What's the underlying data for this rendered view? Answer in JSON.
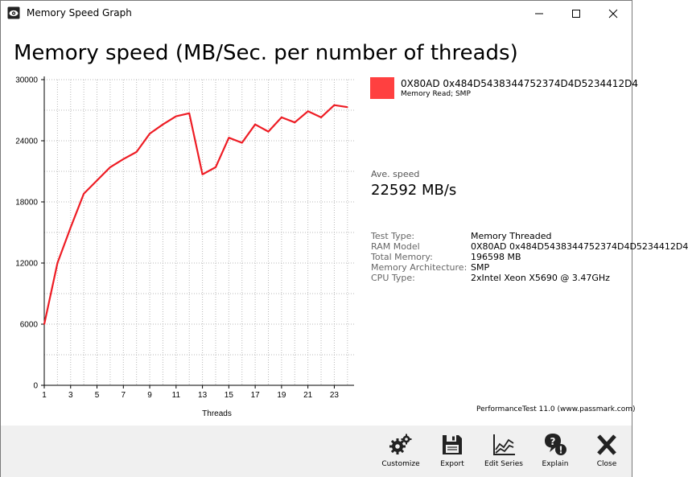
{
  "window": {
    "title": "Memory Speed Graph",
    "icon": "passmark-app-icon"
  },
  "header": {
    "title": "Memory speed (MB/Sec. per number of threads)"
  },
  "legend": {
    "color": "#ff4040",
    "name": "0X80AD 0x484D5438344752374D4D5234412D4",
    "subtitle": "Memory Read; SMP"
  },
  "stats": {
    "ave_label": "Ave. speed",
    "ave_value": "22592 MB/s"
  },
  "info": [
    {
      "key": "Test Type:",
      "value": "Memory Threaded"
    },
    {
      "key": "RAM Model",
      "value": "0X80AD 0x484D5438344752374D4D5234412D4"
    },
    {
      "key": "Total Memory:",
      "value": "196598 MB"
    },
    {
      "key": "Memory Architecture:",
      "value": "SMP"
    },
    {
      "key": "CPU Type:",
      "value": "2xIntel Xeon X5690 @ 3.47GHz"
    }
  ],
  "footer": {
    "credit": "PerformanceTest 11.0 (www.passmark.com)"
  },
  "toolbar": {
    "customize_label": "Customize",
    "export_label": "Export",
    "edit_series_label": "Edit Series",
    "explain_label": "Explain",
    "close_label": "Close"
  },
  "chart_data": {
    "type": "line",
    "title": "",
    "xlabel": "Threads",
    "ylabel": "",
    "x_ticks": [
      "1",
      "3",
      "5",
      "7",
      "9",
      "11",
      "13",
      "15",
      "17",
      "19",
      "21",
      "23"
    ],
    "y_ticks": [
      "0",
      "6000",
      "12000",
      "18000",
      "24000",
      "30000"
    ],
    "xlim": [
      1,
      24.5
    ],
    "ylim": [
      0,
      30000
    ],
    "grid": true,
    "line_color": "#ee1c24",
    "series": [
      {
        "name": "0X80AD 0x484D5438344752374D4D5234412D4",
        "x": [
          1,
          2,
          3,
          4,
          5,
          6,
          7,
          8,
          9,
          10,
          11,
          12,
          13,
          14,
          15,
          16,
          17,
          18,
          19,
          20,
          21,
          22,
          23,
          24
        ],
        "y": [
          6000,
          12000,
          15500,
          18800,
          20100,
          21400,
          22200,
          22900,
          24700,
          25600,
          26400,
          26700,
          20700,
          21400,
          24300,
          23800,
          25600,
          24900,
          26300,
          25800,
          26900,
          26300,
          27500,
          27300
        ]
      }
    ]
  }
}
